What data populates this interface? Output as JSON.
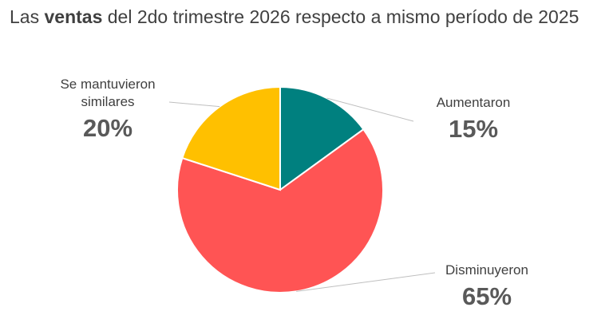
{
  "title": {
    "prefix": "Las ",
    "bold": "ventas",
    "suffix": " del 2do trimestre 2026 respecto a mismo período de 2025"
  },
  "chart_data": {
    "type": "pie",
    "title": "Las ventas del 2do trimestre 2026 respecto a mismo período de 2025",
    "start_angle_deg": 0,
    "direction": "clockwise",
    "legend": "none",
    "slices": [
      {
        "label": "Aumentaron",
        "value": 15,
        "display": "15%",
        "color": "#00807F"
      },
      {
        "label": "Disminuyeron",
        "value": 65,
        "display": "65%",
        "color": "#FF5454"
      },
      {
        "label_lines": [
          "Se mantuvieron",
          "similares"
        ],
        "value": 20,
        "display": "20%",
        "color": "#FFC000"
      }
    ]
  }
}
